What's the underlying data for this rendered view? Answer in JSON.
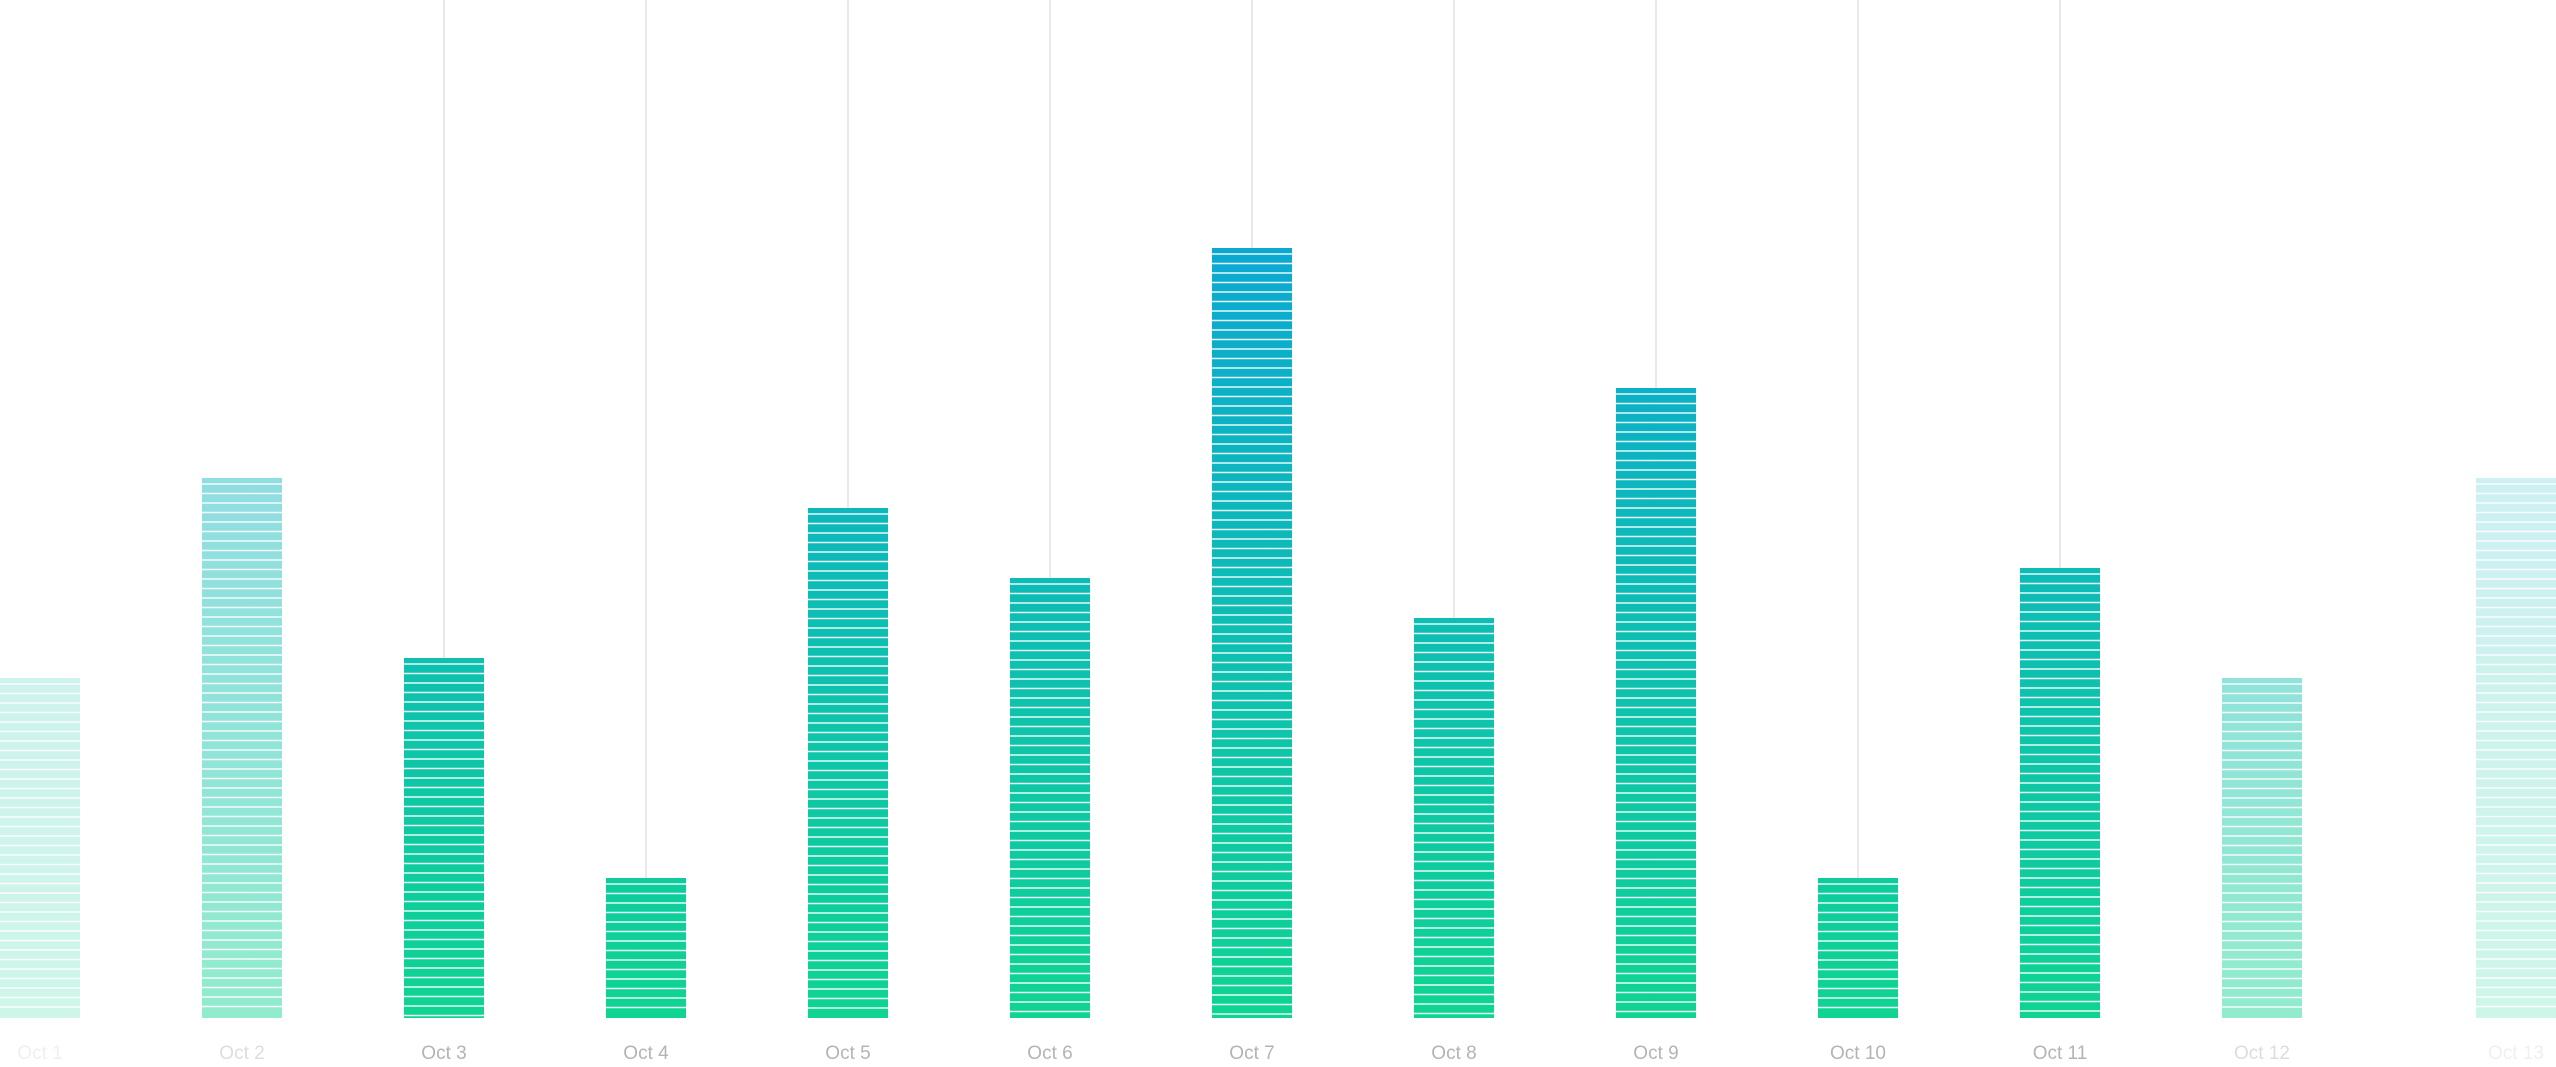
{
  "chart_data": {
    "type": "bar",
    "title": "",
    "xlabel": "",
    "ylabel": "",
    "categories": [
      "Oct 1",
      "Oct 2",
      "Oct 3",
      "Oct 4",
      "Oct 5",
      "Oct 6",
      "Oct 7",
      "Oct 8",
      "Oct 9",
      "Oct 10",
      "Oct 11",
      "Oct 12",
      "Oct 13"
    ],
    "values": [
      34,
      54,
      36,
      14,
      51,
      44,
      77,
      40,
      63,
      14,
      45,
      34,
      54
    ],
    "ylim": [
      0,
      100
    ],
    "emphasis": [
      0.2,
      0.45,
      1,
      1,
      1,
      1,
      1,
      1,
      1,
      1,
      1,
      0.45,
      0.2
    ],
    "grid": false,
    "legend": "none",
    "colors": {
      "bar_bottom": "#0fd492",
      "bar_top": "#0ba6d6",
      "stripe": "#ffffff",
      "drop_line": "#e2e2e2",
      "label": "#b4b4b4",
      "background": "#ffffff"
    }
  }
}
